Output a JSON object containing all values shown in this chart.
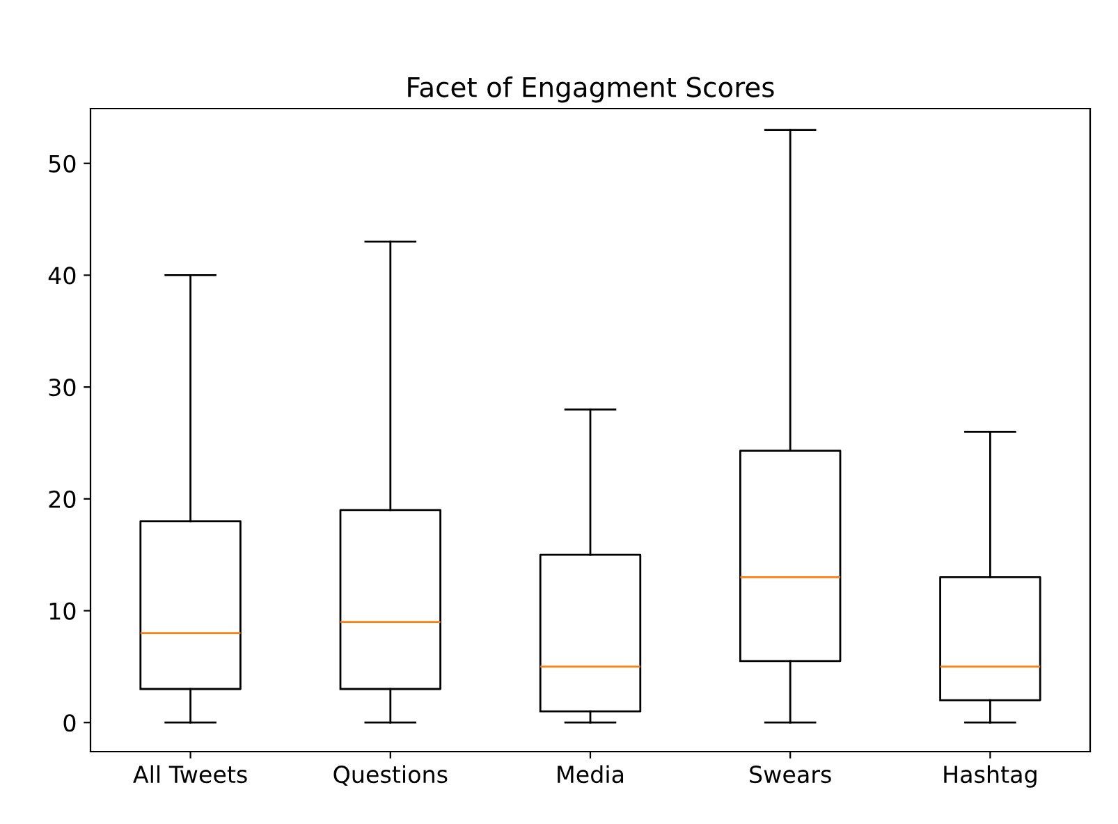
{
  "chart_data": {
    "type": "box",
    "title": "Facet of Engagment Scores",
    "categories": [
      "All Tweets",
      "Questions",
      "Media",
      "Swears",
      "Hashtag"
    ],
    "boxes": [
      {
        "low": 0,
        "q1": 3,
        "median": 8,
        "q3": 18,
        "high": 40
      },
      {
        "low": 0,
        "q1": 3,
        "median": 9,
        "q3": 19,
        "high": 43
      },
      {
        "low": 0,
        "q1": 1,
        "median": 5,
        "q3": 15,
        "high": 28
      },
      {
        "low": 0,
        "q1": 5.5,
        "median": 13,
        "q3": 24.3,
        "high": 53
      },
      {
        "low": 0,
        "q1": 2,
        "median": 5,
        "q3": 13,
        "high": 26
      }
    ],
    "color": "#000000",
    "ylim": [
      -2.6,
      54.9
    ],
    "yticks": [
      0,
      10,
      20,
      30,
      40,
      50
    ],
    "grid": false
  }
}
